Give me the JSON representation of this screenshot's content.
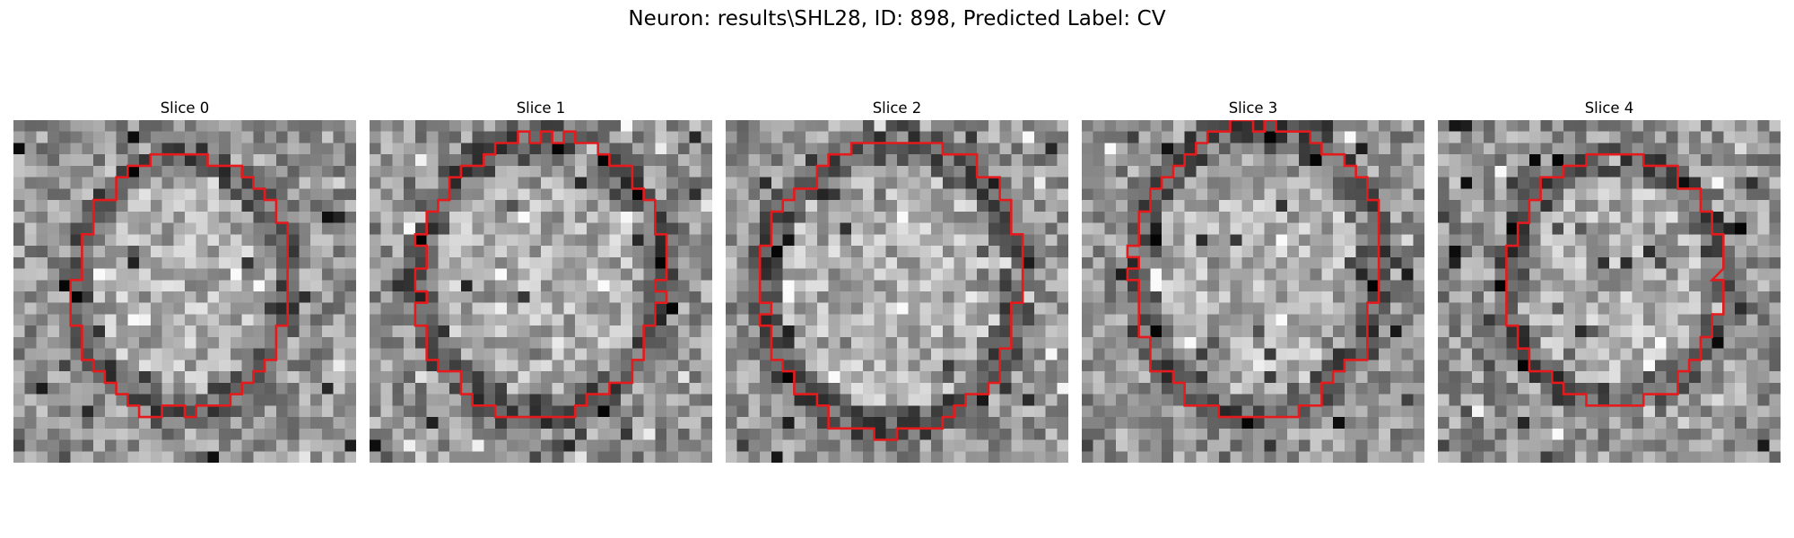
{
  "title": "Neuron: results\\SHL28, ID: 898, Predicted Label: CV",
  "contour_color": "#e41a1c",
  "colormap": "grayscale",
  "panels": [
    {
      "label": "Slice 0",
      "grid": "30x30 grayscale pixel patch",
      "overlay": "red outline of nucleus segmentation"
    },
    {
      "label": "Slice 1",
      "grid": "30x30 grayscale pixel patch",
      "overlay": "red outline of nucleus segmentation"
    },
    {
      "label": "Slice 2",
      "grid": "30x30 grayscale pixel patch",
      "overlay": "red outline of nucleus segmentation"
    },
    {
      "label": "Slice 3",
      "grid": "30x30 grayscale pixel patch",
      "overlay": "red outline of nucleus segmentation"
    },
    {
      "label": "Slice 4",
      "grid": "30x30 grayscale pixel patch",
      "overlay": "red outline of nucleus segmentation"
    }
  ]
}
